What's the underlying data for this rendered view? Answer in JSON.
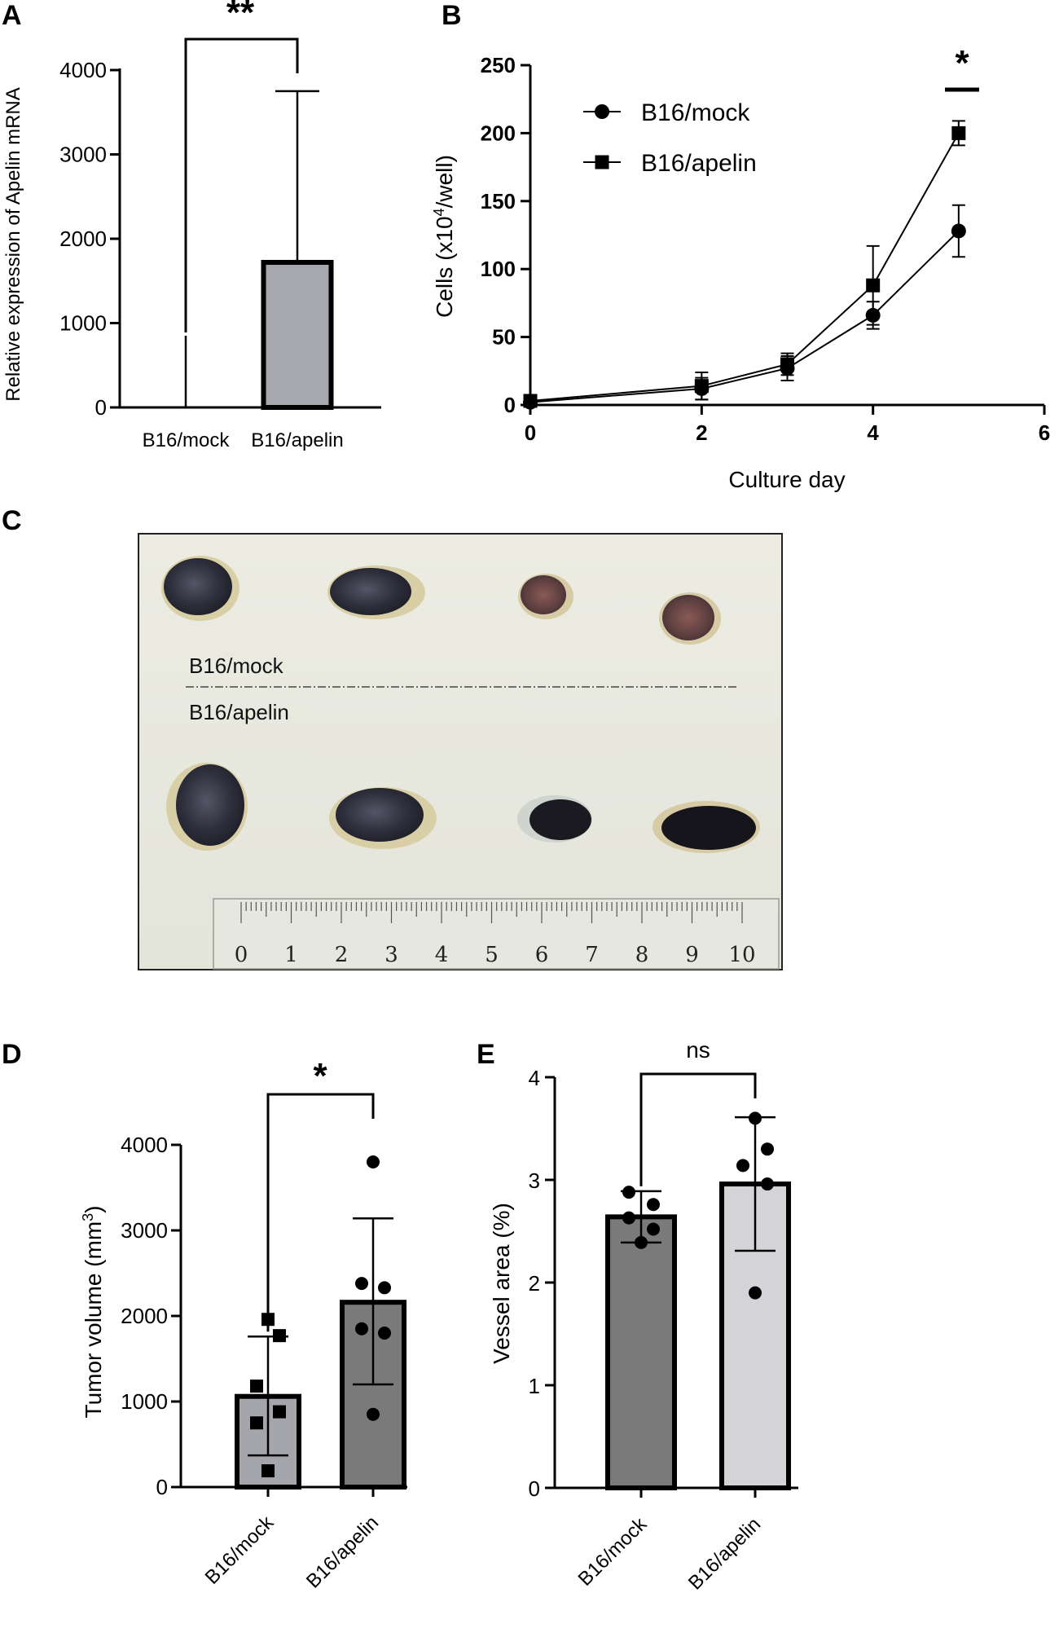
{
  "chart_data": [
    {
      "panel": "A",
      "type": "bar",
      "categories": [
        "B16/mock",
        "B16/apelin"
      ],
      "values": [
        0,
        1720
      ],
      "error_upper": [
        850,
        3750
      ],
      "ylabel": "Relative expression of Apelin mRNA",
      "ylim": [
        0,
        4000
      ],
      "yticks": [
        "0",
        "1000",
        "2000",
        "3000",
        "4000"
      ],
      "significance": "**",
      "bar_colors": [
        "#ffffff",
        "#a7a7ae"
      ]
    },
    {
      "panel": "B",
      "type": "line",
      "xlabel": "Culture day",
      "ylabel": "Cells (x10^4/well)",
      "ylabel_base": "Cells (x10",
      "ylabel_sup": "4",
      "ylabel_end": "/well)",
      "xlim": [
        0,
        6
      ],
      "ylim": [
        0,
        250
      ],
      "xticks": [
        "0",
        "2",
        "4",
        "6"
      ],
      "yticks": [
        "0",
        "50",
        "100",
        "150",
        "200",
        "250"
      ],
      "series": [
        {
          "name": "B16/mock",
          "marker": "circle",
          "x": [
            0,
            2,
            3,
            4,
            5
          ],
          "y": [
            2,
            12,
            27,
            66,
            128
          ],
          "err": [
            1,
            8,
            9,
            10,
            19
          ]
        },
        {
          "name": "B16/apelin",
          "marker": "square",
          "x": [
            0,
            2,
            3,
            4,
            5
          ],
          "y": [
            3,
            14,
            30,
            88,
            200
          ],
          "err": [
            1,
            10,
            8,
            29,
            9
          ]
        }
      ],
      "significance": "*"
    },
    {
      "panel": "D",
      "type": "bar",
      "categories": [
        "B16/mock",
        "B16/apelin"
      ],
      "values": [
        1060,
        2160
      ],
      "error_low": [
        370,
        1200
      ],
      "error_high": [
        1760,
        3140
      ],
      "points": [
        [
          1960,
          1770,
          1180,
          880,
          750,
          190
        ],
        [
          3800,
          2380,
          2330,
          1850,
          1800,
          850
        ]
      ],
      "point_markers": [
        "square",
        "circle"
      ],
      "ylabel": "Tumor volume (mm^3)",
      "ylabel_base": "Tumor volume (mm",
      "ylabel_sup": "3",
      "ylabel_end": ")",
      "ylim": [
        0,
        4000
      ],
      "yticks": [
        "0",
        "1000",
        "2000",
        "3000",
        "4000"
      ],
      "significance": "*",
      "bar_colors": [
        "#a5a5ac",
        "#7a7a7a"
      ]
    },
    {
      "panel": "E",
      "type": "bar",
      "categories": [
        "B16/mock",
        "B16/apelin"
      ],
      "values": [
        2.64,
        2.96
      ],
      "error_low": [
        2.39,
        2.31
      ],
      "error_high": [
        2.89,
        3.61
      ],
      "points": [
        [
          2.88,
          2.76,
          2.63,
          2.52,
          2.39
        ],
        [
          3.6,
          3.3,
          3.14,
          2.96,
          1.9
        ]
      ],
      "ylabel": "Vessel area (%)",
      "ylim": [
        0,
        4
      ],
      "yticks": [
        "0",
        "1",
        "2",
        "3",
        "4"
      ],
      "significance": "ns",
      "bar_colors": [
        "#7a7a7a",
        "#d4d4d8"
      ]
    }
  ],
  "panels": {
    "A": "A",
    "B": "B",
    "C": "C",
    "D": "D",
    "E": "E"
  },
  "photo": {
    "label_top": "B16/mock",
    "label_bottom": "B16/apelin",
    "ruler_numbers": [
      "0",
      "1",
      "2",
      "3",
      "4",
      "5",
      "6",
      "7",
      "8",
      "9",
      "10"
    ]
  }
}
